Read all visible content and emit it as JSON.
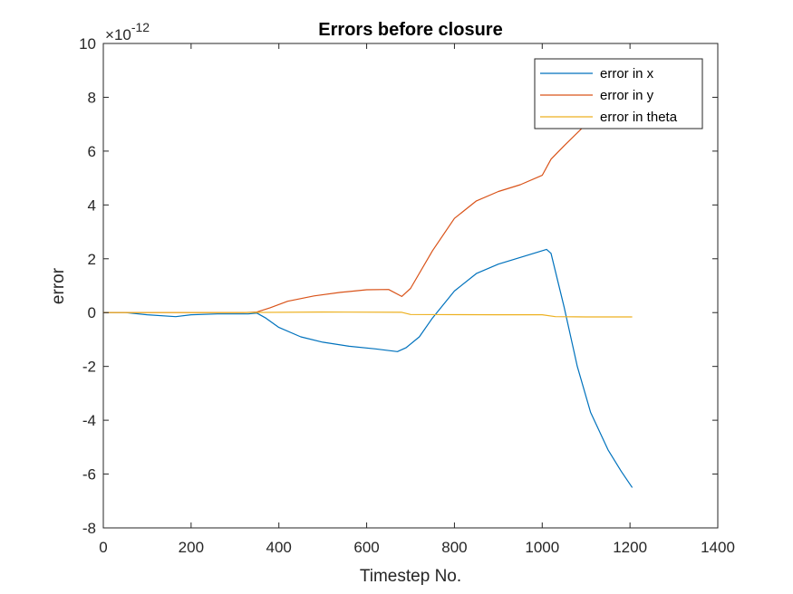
{
  "chart_data": {
    "type": "line",
    "title": "Errors before closure",
    "xlabel": "Timestep No.",
    "ylabel": "error",
    "y_exponent_base": "10",
    "y_exponent_power": "-12",
    "xlim": [
      0,
      1400
    ],
    "ylim": [
      -8,
      10
    ],
    "xticks": [
      0,
      200,
      400,
      600,
      800,
      1000,
      1200,
      1400
    ],
    "yticks": [
      -8,
      -6,
      -4,
      -2,
      0,
      2,
      4,
      6,
      8,
      10
    ],
    "grid": false,
    "legend_position": "top-right",
    "series": [
      {
        "name": "error in x",
        "color": "#0072BD",
        "x": [
          0,
          50,
          100,
          165,
          200,
          260,
          330,
          350,
          370,
          400,
          450,
          500,
          560,
          620,
          670,
          690,
          720,
          750,
          800,
          850,
          900,
          950,
          1010,
          1020,
          1050,
          1080,
          1110,
          1150,
          1180,
          1205
        ],
        "y": [
          0,
          0,
          -0.08,
          -0.15,
          -0.08,
          -0.05,
          -0.05,
          -0.02,
          -0.2,
          -0.55,
          -0.9,
          -1.1,
          -1.25,
          -1.35,
          -1.45,
          -1.3,
          -0.9,
          -0.2,
          0.8,
          1.45,
          1.8,
          2.05,
          2.35,
          2.2,
          0.2,
          -2.0,
          -3.7,
          -5.1,
          -5.9,
          -6.5
        ]
      },
      {
        "name": "error in y",
        "color": "#D95319",
        "x": [
          0,
          50,
          150,
          250,
          320,
          350,
          380,
          420,
          480,
          540,
          600,
          650,
          680,
          700,
          750,
          800,
          850,
          900,
          950,
          1000,
          1020,
          1050,
          1100,
          1125
        ],
        "y": [
          0,
          0,
          0,
          0,
          0,
          0.02,
          0.18,
          0.42,
          0.62,
          0.75,
          0.85,
          0.86,
          0.6,
          0.9,
          2.3,
          3.5,
          4.15,
          4.5,
          4.75,
          5.1,
          5.7,
          6.2,
          7.0,
          7.6
        ]
      },
      {
        "name": "error in theta",
        "color": "#EDB120",
        "x": [
          0,
          300,
          500,
          680,
          700,
          900,
          1000,
          1030,
          1100,
          1205
        ],
        "y": [
          0,
          0,
          0.02,
          0.01,
          -0.07,
          -0.08,
          -0.08,
          -0.15,
          -0.16,
          -0.16
        ]
      }
    ]
  }
}
